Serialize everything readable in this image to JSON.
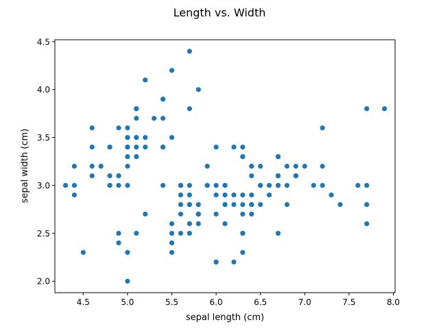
{
  "chart_data": {
    "type": "scatter",
    "title": "Length vs. Width",
    "xlabel": "sepal length (cm)",
    "ylabel": "sepal width (cm)",
    "xlim": [
      4.18,
      8.02
    ],
    "ylim": [
      1.88,
      4.52
    ],
    "xticks": [
      4.5,
      5.0,
      5.5,
      6.0,
      6.5,
      7.0,
      7.5,
      8.0
    ],
    "xtick_labels": [
      "4.5",
      "5.0",
      "5.5",
      "6.0",
      "6.5",
      "7.0",
      "7.5",
      "8.0"
    ],
    "yticks": [
      2.0,
      2.5,
      3.0,
      3.5,
      4.0,
      4.5
    ],
    "ytick_labels": [
      "2.0",
      "2.5",
      "3.0",
      "3.5",
      "4.0",
      "4.5"
    ],
    "grid": false,
    "legend": "none",
    "marker_color": "#1f77b4",
    "points": [
      [
        5.1,
        3.5
      ],
      [
        4.9,
        3.0
      ],
      [
        4.7,
        3.2
      ],
      [
        4.6,
        3.1
      ],
      [
        5.0,
        3.6
      ],
      [
        5.4,
        3.9
      ],
      [
        4.6,
        3.4
      ],
      [
        5.0,
        3.4
      ],
      [
        4.4,
        2.9
      ],
      [
        4.9,
        3.1
      ],
      [
        5.4,
        3.7
      ],
      [
        4.8,
        3.4
      ],
      [
        4.8,
        3.0
      ],
      [
        4.3,
        3.0
      ],
      [
        5.8,
        4.0
      ],
      [
        5.7,
        4.4
      ],
      [
        5.4,
        3.9
      ],
      [
        5.1,
        3.5
      ],
      [
        5.7,
        3.8
      ],
      [
        5.1,
        3.8
      ],
      [
        5.4,
        3.4
      ],
      [
        5.1,
        3.7
      ],
      [
        4.6,
        3.6
      ],
      [
        5.1,
        3.3
      ],
      [
        4.8,
        3.4
      ],
      [
        5.0,
        3.0
      ],
      [
        5.0,
        3.4
      ],
      [
        5.2,
        3.5
      ],
      [
        5.2,
        3.4
      ],
      [
        4.7,
        3.2
      ],
      [
        4.8,
        3.1
      ],
      [
        5.4,
        3.4
      ],
      [
        5.2,
        4.1
      ],
      [
        5.5,
        4.2
      ],
      [
        4.9,
        3.1
      ],
      [
        5.0,
        3.2
      ],
      [
        5.5,
        3.5
      ],
      [
        4.9,
        3.6
      ],
      [
        4.4,
        3.0
      ],
      [
        5.1,
        3.4
      ],
      [
        5.0,
        3.5
      ],
      [
        4.5,
        2.3
      ],
      [
        4.4,
        3.2
      ],
      [
        5.0,
        3.5
      ],
      [
        5.1,
        3.8
      ],
      [
        4.8,
        3.0
      ],
      [
        5.1,
        3.8
      ],
      [
        4.6,
        3.2
      ],
      [
        5.3,
        3.7
      ],
      [
        5.0,
        3.3
      ],
      [
        7.0,
        3.2
      ],
      [
        6.4,
        3.2
      ],
      [
        6.9,
        3.1
      ],
      [
        5.5,
        2.3
      ],
      [
        6.5,
        2.8
      ],
      [
        5.7,
        2.8
      ],
      [
        6.3,
        3.3
      ],
      [
        4.9,
        2.4
      ],
      [
        6.6,
        2.9
      ],
      [
        5.2,
        2.7
      ],
      [
        5.0,
        2.0
      ],
      [
        5.9,
        3.0
      ],
      [
        6.0,
        2.2
      ],
      [
        6.1,
        2.9
      ],
      [
        5.6,
        2.9
      ],
      [
        6.7,
        3.1
      ],
      [
        5.6,
        3.0
      ],
      [
        5.8,
        2.7
      ],
      [
        6.2,
        2.2
      ],
      [
        5.6,
        2.5
      ],
      [
        5.9,
        3.2
      ],
      [
        6.1,
        2.8
      ],
      [
        6.3,
        2.5
      ],
      [
        6.1,
        2.8
      ],
      [
        6.4,
        2.9
      ],
      [
        6.6,
        3.0
      ],
      [
        6.8,
        2.8
      ],
      [
        6.7,
        3.0
      ],
      [
        6.0,
        2.9
      ],
      [
        5.7,
        2.6
      ],
      [
        5.5,
        2.4
      ],
      [
        5.5,
        2.4
      ],
      [
        5.8,
        2.7
      ],
      [
        6.0,
        2.7
      ],
      [
        5.4,
        3.0
      ],
      [
        6.0,
        3.4
      ],
      [
        6.7,
        3.1
      ],
      [
        6.3,
        2.3
      ],
      [
        5.6,
        3.0
      ],
      [
        5.5,
        2.5
      ],
      [
        5.5,
        2.6
      ],
      [
        6.1,
        3.0
      ],
      [
        5.8,
        2.6
      ],
      [
        5.0,
        2.3
      ],
      [
        5.6,
        2.7
      ],
      [
        5.7,
        3.0
      ],
      [
        5.7,
        2.9
      ],
      [
        6.2,
        2.9
      ],
      [
        5.1,
        2.5
      ],
      [
        5.7,
        2.8
      ],
      [
        6.3,
        3.3
      ],
      [
        5.8,
        2.7
      ],
      [
        7.1,
        3.0
      ],
      [
        6.3,
        2.9
      ],
      [
        6.5,
        3.0
      ],
      [
        7.6,
        3.0
      ],
      [
        4.9,
        2.5
      ],
      [
        7.3,
        2.9
      ],
      [
        6.7,
        2.5
      ],
      [
        7.2,
        3.6
      ],
      [
        6.5,
        3.2
      ],
      [
        6.4,
        2.7
      ],
      [
        6.8,
        3.0
      ],
      [
        5.7,
        2.5
      ],
      [
        5.8,
        2.8
      ],
      [
        6.4,
        3.2
      ],
      [
        6.5,
        3.0
      ],
      [
        7.7,
        3.8
      ],
      [
        7.7,
        2.6
      ],
      [
        6.0,
        2.2
      ],
      [
        6.9,
        3.2
      ],
      [
        5.6,
        2.8
      ],
      [
        7.7,
        2.8
      ],
      [
        6.3,
        2.7
      ],
      [
        6.7,
        3.3
      ],
      [
        7.2,
        3.2
      ],
      [
        6.2,
        2.8
      ],
      [
        6.1,
        3.0
      ],
      [
        6.4,
        2.8
      ],
      [
        7.2,
        3.0
      ],
      [
        7.4,
        2.8
      ],
      [
        7.9,
        3.8
      ],
      [
        6.4,
        2.8
      ],
      [
        6.3,
        2.8
      ],
      [
        6.1,
        2.6
      ],
      [
        7.7,
        3.0
      ],
      [
        6.3,
        3.4
      ],
      [
        6.4,
        3.1
      ],
      [
        6.0,
        3.0
      ],
      [
        6.9,
        3.1
      ],
      [
        6.7,
        3.1
      ],
      [
        6.9,
        3.1
      ],
      [
        5.8,
        2.7
      ],
      [
        6.8,
        3.2
      ],
      [
        6.7,
        3.3
      ],
      [
        6.7,
        3.0
      ],
      [
        6.3,
        2.5
      ],
      [
        6.5,
        3.0
      ],
      [
        6.2,
        3.4
      ],
      [
        5.9,
        3.0
      ]
    ]
  }
}
